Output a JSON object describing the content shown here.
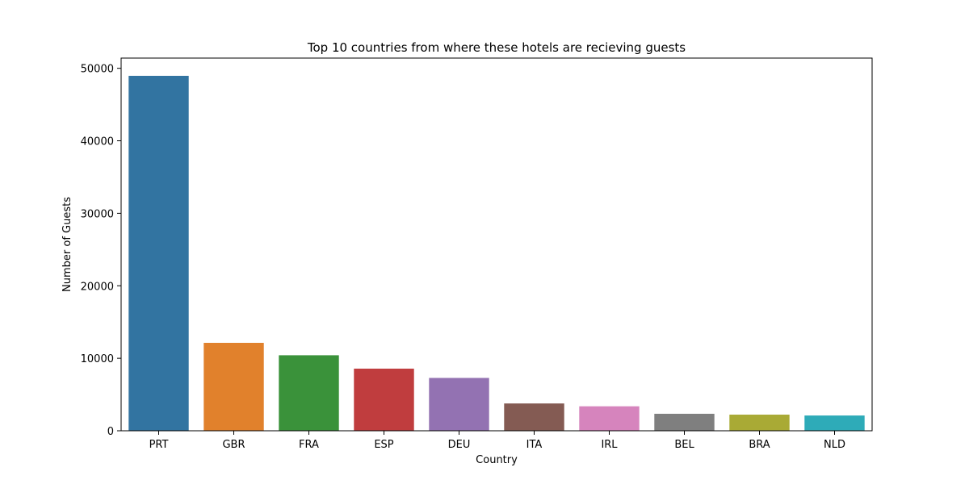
{
  "chart_data": {
    "type": "bar",
    "title": "Top 10 countries from where these hotels are recieving guests",
    "xlabel": "Country",
    "ylabel": "Number of Guests",
    "categories": [
      "PRT",
      "GBR",
      "FRA",
      "ESP",
      "DEU",
      "ITA",
      "IRL",
      "BEL",
      "BRA",
      "NLD"
    ],
    "values": [
      48961,
      12129,
      10415,
      8568,
      7287,
      3766,
      3375,
      2342,
      2224,
      2104
    ],
    "colors": [
      "#3274a1",
      "#e1812c",
      "#3a923a",
      "#c03d3e",
      "#9372b2",
      "#845b53",
      "#d684bd",
      "#7f7f7f",
      "#a9aa35",
      "#2eabb8"
    ],
    "yticks": [
      0,
      10000,
      20000,
      30000,
      40000,
      50000
    ],
    "ylim": [
      0,
      51409
    ],
    "grid": false,
    "legend": "none"
  }
}
